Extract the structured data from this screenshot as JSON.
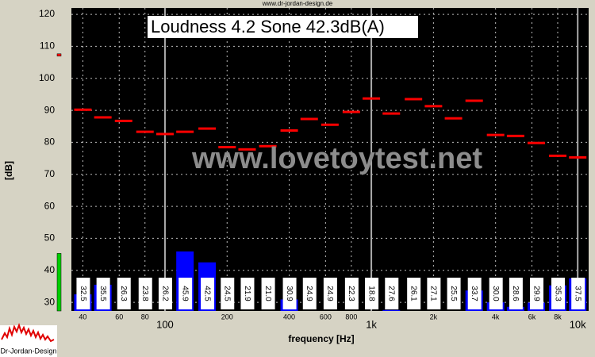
{
  "chart_data": {
    "type": "third-octave",
    "site": "www.dr-jordan-design.de",
    "title": "Loudness 4.2 Sone 42.3dB(A)",
    "watermark": "www.lovetoytest.net",
    "y_label": "[dB]",
    "x_label": "frequency [Hz]",
    "logo": "Dr-Jordan-Design",
    "x": [
      40,
      50,
      63,
      80,
      100,
      125,
      160,
      200,
      250,
      315,
      400,
      500,
      630,
      800,
      1000,
      1250,
      1600,
      2000,
      2500,
      3150,
      4000,
      5000,
      6300,
      8000,
      10000
    ],
    "series": [
      {
        "color": "#ff0000",
        "values": [
          90.2,
          87.8,
          86.7,
          83.3,
          82.6,
          83.3,
          84.3,
          78.5,
          77.8,
          78.8,
          83.7,
          87.3,
          85.5,
          89.5,
          93.7,
          89.0,
          93.5,
          91.3,
          87.5,
          93.0,
          82.3,
          82.0,
          79.8,
          75.8,
          75.3
        ]
      },
      {
        "color": "#0000ff",
        "values": [
          32.5,
          35.5,
          26.3,
          23.8,
          26.2,
          45.9,
          42.5,
          24.5,
          21.9,
          21.0,
          30.9,
          24.9,
          24.9,
          22.3,
          18.8,
          27.6,
          26.1,
          27.1,
          25.5,
          33.7,
          30.0,
          28.6,
          29.9,
          35.3,
          37.5
        ],
        "value_labels": [
          "32.5",
          "35.5",
          "26.3",
          "23.8",
          "26.2",
          "45.9",
          "42.5",
          "24.5",
          "21.9",
          "21.0",
          "30.9",
          "24.9",
          "24.9",
          "22.3",
          "18.8",
          "27.6",
          "26.1",
          "27.1",
          "25.5",
          "33.7",
          "30.0",
          "28.6",
          "29.9",
          "35.3",
          "37.5"
        ]
      }
    ],
    "indicators": [
      {
        "color": "#00cc00",
        "value": 45.3
      },
      {
        "color": "#ff0000",
        "value": 107.3
      }
    ],
    "log_x": true,
    "xlim": [
      35.2,
      11300
    ],
    "xticks": [
      40,
      60,
      80,
      100,
      200,
      400,
      600,
      800,
      {
        "value": 1000,
        "label": "1k"
      },
      {
        "value": 2000,
        "label": "2k"
      },
      {
        "value": 4000,
        "label": "4k"
      },
      {
        "value": 6000,
        "label": "6k"
      },
      {
        "value": 8000,
        "label": "8k"
      },
      {
        "value": 10000,
        "label": "10k"
      }
    ],
    "ylim": [
      27.3,
      122
    ],
    "yticks": [
      30,
      40,
      50,
      60,
      70,
      80,
      90,
      100,
      110,
      120
    ],
    "grid": true
  }
}
